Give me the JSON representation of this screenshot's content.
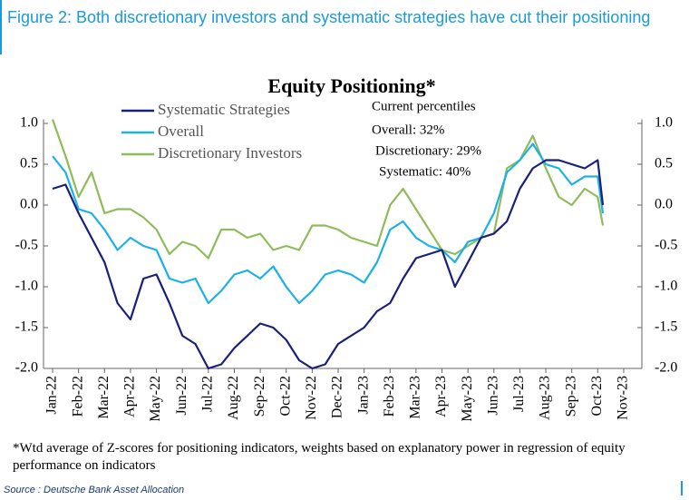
{
  "chart_data": {
    "type": "line",
    "caption": "Figure 2: Both discretionary investors and systematic strategies have cut their positioning",
    "title": "Equity Positioning*",
    "annotations": [
      "Current percentiles",
      "Overall: 32%",
      "Discretionary: 29%",
      "Systematic: 40%"
    ],
    "footnote": "*Wtd average of Z-scores for positioning indicators, weights based on explanatory power in regression of equity performance on indicators",
    "source": "Source : Deutsche Bank Asset Allocation",
    "x": [
      0,
      0.5,
      1,
      1.5,
      2,
      2.5,
      3,
      3.5,
      4,
      4.5,
      5,
      5.5,
      6,
      6.5,
      7,
      7.5,
      8,
      8.5,
      9,
      9.5,
      10,
      10.5,
      11,
      11.5,
      12,
      12.5,
      13,
      13.5,
      14,
      14.5,
      15,
      15.5,
      16,
      16.5,
      17,
      17.5,
      18,
      18.5,
      19,
      19.5,
      20,
      20.5,
      21,
      21.2
    ],
    "xlim": [
      -0.35,
      22.7
    ],
    "xticks": [
      {
        "value": 0,
        "label": "Jan-22"
      },
      {
        "value": 1,
        "label": "Feb-22"
      },
      {
        "value": 2,
        "label": "Mar-22"
      },
      {
        "value": 3,
        "label": "Apr-22"
      },
      {
        "value": 4,
        "label": "May-22"
      },
      {
        "value": 5,
        "label": "Jun-22"
      },
      {
        "value": 6,
        "label": "Jul-22"
      },
      {
        "value": 7,
        "label": "Aug-22"
      },
      {
        "value": 8,
        "label": "Sep-22"
      },
      {
        "value": 9,
        "label": "Oct-22"
      },
      {
        "value": 10,
        "label": "Nov-22"
      },
      {
        "value": 11,
        "label": "Dec-22"
      },
      {
        "value": 12,
        "label": "Jan-23"
      },
      {
        "value": 13,
        "label": "Feb-23"
      },
      {
        "value": 14,
        "label": "Mar-23"
      },
      {
        "value": 15,
        "label": "Apr-23"
      },
      {
        "value": 16,
        "label": "May-23"
      },
      {
        "value": 17,
        "label": "Jun-23"
      },
      {
        "value": 18,
        "label": "Jul-23"
      },
      {
        "value": 19,
        "label": "Aug-23"
      },
      {
        "value": 20,
        "label": "Sep-23"
      },
      {
        "value": 21,
        "label": "Oct-23"
      },
      {
        "value": 22,
        "label": "Nov-23"
      }
    ],
    "ylim": [
      -2,
      1.05
    ],
    "yticks": [
      {
        "value": 1,
        "label": "1.0"
      },
      0.5,
      {
        "value": 0,
        "label": "0.0"
      },
      -0.5,
      {
        "value": -1,
        "label": "-1.0"
      },
      -1.5,
      {
        "value": -2,
        "label": "-2.0"
      }
    ],
    "y2lim": [
      -2,
      1.05
    ],
    "y2ticks": [
      {
        "value": 1,
        "label": "1.0"
      },
      0.5,
      {
        "value": 0,
        "label": "0.0"
      },
      -0.5,
      {
        "value": -1,
        "label": "-1.0"
      },
      -1.5,
      {
        "value": -2,
        "label": "-2.0"
      }
    ],
    "series": [
      {
        "name": "Systematic Strategies",
        "color": "#1a1f7a",
        "values": [
          0.2,
          0.25,
          -0.1,
          -0.4,
          -0.7,
          -1.2,
          -1.4,
          -0.9,
          -0.85,
          -1.2,
          -1.6,
          -1.7,
          -2.0,
          -1.95,
          -1.75,
          -1.6,
          -1.45,
          -1.5,
          -1.65,
          -1.9,
          -2.0,
          -1.95,
          -1.7,
          -1.6,
          -1.5,
          -1.3,
          -1.2,
          -0.9,
          -0.65,
          -0.6,
          -0.55,
          -1.0,
          -0.7,
          -0.4,
          -0.35,
          -0.2,
          0.2,
          0.45,
          0.55,
          0.55,
          0.5,
          0.45,
          0.55,
          0.0
        ]
      },
      {
        "name": "Overall",
        "color": "#1ab0e8",
        "values": [
          0.6,
          0.4,
          -0.05,
          -0.1,
          -0.3,
          -0.55,
          -0.4,
          -0.5,
          -0.55,
          -0.9,
          -0.95,
          -0.9,
          -1.2,
          -1.05,
          -0.85,
          -0.8,
          -0.9,
          -0.75,
          -1.0,
          -1.2,
          -1.05,
          -0.85,
          -0.8,
          -0.85,
          -0.95,
          -0.7,
          -0.3,
          -0.2,
          -0.4,
          -0.5,
          -0.55,
          -0.7,
          -0.45,
          -0.4,
          -0.1,
          0.4,
          0.55,
          0.75,
          0.5,
          0.45,
          0.25,
          0.35,
          0.35,
          -0.1
        ]
      },
      {
        "name": "Discretionary Investors",
        "color": "#8fbc5a",
        "values": [
          1.05,
          0.6,
          0.1,
          0.4,
          -0.1,
          -0.05,
          -0.05,
          -0.15,
          -0.3,
          -0.6,
          -0.45,
          -0.5,
          -0.65,
          -0.3,
          -0.3,
          -0.4,
          -0.35,
          -0.55,
          -0.5,
          -0.55,
          -0.25,
          -0.25,
          -0.3,
          -0.4,
          -0.45,
          -0.5,
          0.0,
          0.2,
          -0.05,
          -0.3,
          -0.55,
          -0.6,
          -0.5,
          -0.4,
          -0.35,
          0.45,
          0.55,
          0.85,
          0.45,
          0.1,
          0.0,
          0.2,
          0.1,
          -0.25
        ]
      }
    ]
  }
}
